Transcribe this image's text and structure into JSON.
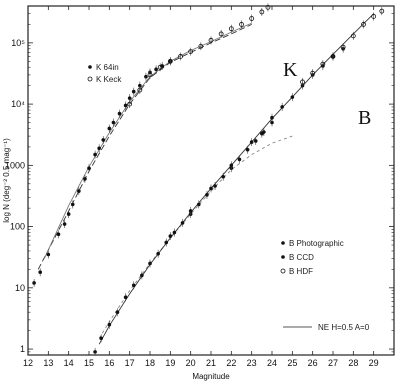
{
  "chart_data": {
    "type": "scatter",
    "title": "",
    "xlabel": "Magnitude",
    "ylabel": "log N (deg⁻² 0.5 mag⁻¹)",
    "xlim": [
      12,
      30
    ],
    "ylim": [
      0.8,
      400000
    ],
    "yscale": "log",
    "x_ticks": [
      12,
      13,
      14,
      15,
      16,
      17,
      18,
      19,
      20,
      21,
      22,
      23,
      24,
      25,
      26,
      27,
      28,
      29
    ],
    "y_ticks": [
      {
        "value": 1,
        "label": "1"
      },
      {
        "value": 10,
        "label": "10"
      },
      {
        "value": 100,
        "label": "100"
      },
      {
        "value": 1000,
        "label": "1000"
      },
      {
        "value": 10000,
        "label": "10⁴"
      },
      {
        "value": 100000,
        "label": "10⁵"
      }
    ],
    "panel_labels": [
      "K",
      "B"
    ],
    "legend_k": [
      "K 64in",
      "K Keck"
    ],
    "legend_b": [
      "B Photographic",
      "B CCD",
      "B HDF"
    ],
    "model_label": "NE H=0.5 A=0",
    "series": [
      {
        "name": "K 64in",
        "marker": "dot",
        "points": [
          [
            12.3,
            12
          ],
          [
            12.6,
            18
          ],
          [
            13.0,
            35
          ],
          [
            13.5,
            75
          ],
          [
            13.8,
            110
          ],
          [
            14.0,
            160
          ],
          [
            14.2,
            230
          ],
          [
            14.5,
            380
          ],
          [
            14.8,
            600
          ],
          [
            15.0,
            900
          ],
          [
            15.3,
            1500
          ],
          [
            15.5,
            1900
          ],
          [
            15.7,
            2600
          ],
          [
            16.0,
            4000
          ],
          [
            16.2,
            5000
          ],
          [
            16.5,
            7000
          ],
          [
            16.8,
            9500
          ],
          [
            17.0,
            12500
          ],
          [
            17.2,
            16000
          ],
          [
            17.5,
            20000
          ],
          [
            17.8,
            28000
          ],
          [
            18.0,
            33000
          ],
          [
            18.3,
            37000
          ],
          [
            18.6,
            42000
          ],
          [
            19.0,
            50000
          ]
        ]
      },
      {
        "name": "K Keck",
        "marker": "open",
        "points": [
          [
            17.0,
            10000
          ],
          [
            17.5,
            17000
          ],
          [
            18.0,
            30000
          ],
          [
            18.5,
            40000
          ],
          [
            19.0,
            50000
          ],
          [
            19.5,
            60000
          ],
          [
            20.0,
            72000
          ],
          [
            20.5,
            88000
          ],
          [
            21.0,
            110000
          ],
          [
            21.5,
            140000
          ],
          [
            22.0,
            170000
          ],
          [
            22.5,
            200000
          ],
          [
            23.0,
            250000
          ],
          [
            23.5,
            320000
          ],
          [
            23.8,
            380000
          ]
        ]
      },
      {
        "name": "B Photographic",
        "marker": "dot",
        "points": [
          [
            15.3,
            0.9
          ],
          [
            15.6,
            1.5
          ],
          [
            16.0,
            2.5
          ],
          [
            16.4,
            4
          ],
          [
            16.8,
            7
          ],
          [
            17.2,
            11
          ],
          [
            17.6,
            16
          ],
          [
            18.0,
            25
          ],
          [
            18.4,
            36
          ],
          [
            18.8,
            55
          ],
          [
            19.2,
            80
          ],
          [
            19.6,
            115
          ],
          [
            20.0,
            160
          ],
          [
            20.4,
            230
          ],
          [
            20.8,
            330
          ],
          [
            21.2,
            460
          ],
          [
            21.6,
            650
          ],
          [
            22.0,
            900
          ],
          [
            22.4,
            1250
          ],
          [
            22.8,
            1800
          ],
          [
            23.2,
            2500
          ],
          [
            23.6,
            3500
          ],
          [
            24.0,
            5000
          ]
        ]
      },
      {
        "name": "B CCD",
        "marker": "dot",
        "points": [
          [
            19.0,
            70
          ],
          [
            20.0,
            180
          ],
          [
            21.0,
            420
          ],
          [
            22.0,
            1000
          ],
          [
            23.0,
            2400
          ],
          [
            23.5,
            3300
          ],
          [
            24.0,
            6000
          ],
          [
            24.5,
            9000
          ],
          [
            25.0,
            13000
          ],
          [
            25.5,
            20000
          ],
          [
            26.0,
            30000
          ],
          [
            26.5,
            42000
          ],
          [
            27.0,
            60000
          ],
          [
            27.5,
            80000
          ]
        ]
      },
      {
        "name": "B HDF",
        "marker": "open",
        "points": [
          [
            25.5,
            23000
          ],
          [
            26.0,
            32000
          ],
          [
            26.5,
            45000
          ],
          [
            27.0,
            60000
          ],
          [
            27.5,
            85000
          ],
          [
            28.0,
            130000
          ],
          [
            28.5,
            200000
          ],
          [
            29.0,
            270000
          ],
          [
            29.4,
            330000
          ]
        ]
      }
    ],
    "model_curves": [
      {
        "points": [
          [
            12.5,
            20
          ],
          [
            14,
            180
          ],
          [
            15,
            800
          ],
          [
            16,
            3000
          ],
          [
            17,
            10000
          ],
          [
            18,
            27000
          ],
          [
            19,
            48000
          ],
          [
            20,
            70000
          ],
          [
            21,
            100000
          ],
          [
            22,
            140000
          ],
          [
            23,
            200000
          ]
        ]
      },
      {
        "points": [
          [
            12.8,
            30
          ],
          [
            14,
            220
          ],
          [
            15,
            950
          ],
          [
            16,
            3400
          ],
          [
            17,
            11000
          ],
          [
            18,
            28000
          ],
          [
            19,
            50000
          ],
          [
            20,
            75000
          ],
          [
            21,
            105000
          ],
          [
            22,
            150000
          ],
          [
            23,
            210000
          ]
        ]
      },
      {
        "points": [
          [
            15.5,
            1.5
          ],
          [
            16,
            2.8
          ],
          [
            17,
            9
          ],
          [
            18,
            25
          ],
          [
            19,
            65
          ],
          [
            20,
            160
          ],
          [
            21,
            380
          ],
          [
            22,
            850
          ],
          [
            23,
            1500
          ],
          [
            24,
            2300
          ],
          [
            25,
            3000
          ]
        ]
      },
      {
        "points": [
          [
            15.5,
            1.2
          ],
          [
            16,
            2.4
          ],
          [
            17,
            8
          ],
          [
            18,
            24
          ],
          [
            19,
            65
          ],
          [
            20,
            170
          ],
          [
            21,
            420
          ],
          [
            22,
            1000
          ],
          [
            23,
            2400
          ],
          [
            24,
            5800
          ],
          [
            25,
            13000
          ],
          [
            26,
            30000
          ],
          [
            27,
            65000
          ],
          [
            28,
            140000
          ],
          [
            29,
            300000
          ]
        ]
      }
    ]
  }
}
